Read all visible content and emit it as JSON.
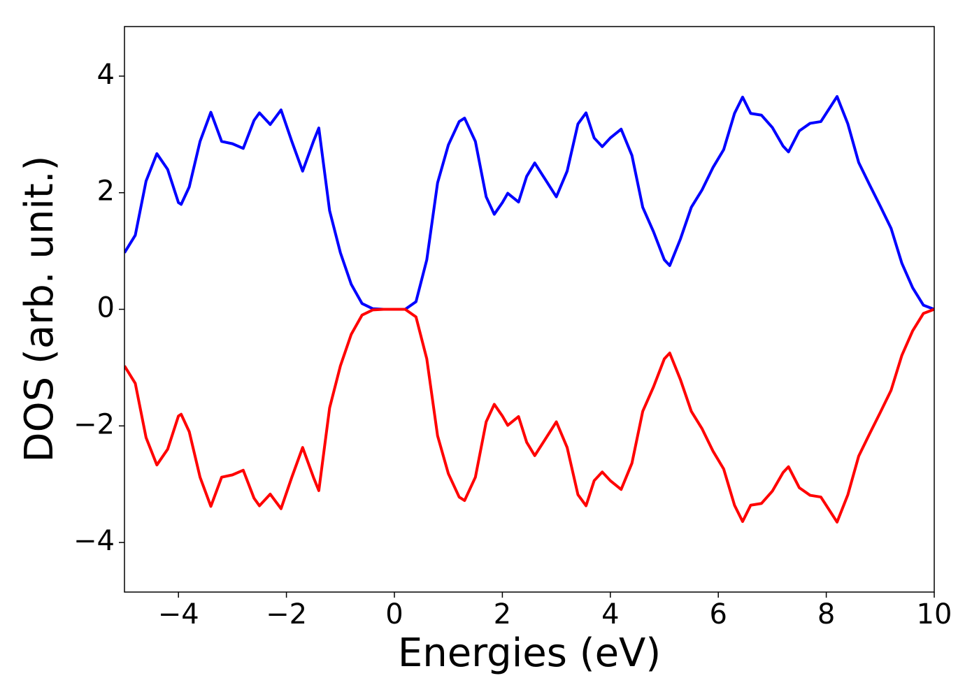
{
  "chart_data": {
    "type": "line",
    "xlabel": "Energies (eV)",
    "ylabel": "DOS (arb. unit.)",
    "x": [
      -5,
      -4.8,
      -4.6,
      -4.4,
      -4.2,
      -4.0,
      -3.95,
      -3.8,
      -3.6,
      -3.4,
      -3.2,
      -3.0,
      -2.8,
      -2.6,
      -2.5,
      -2.3,
      -2.1,
      -1.9,
      -1.7,
      -1.5,
      -1.4,
      -1.2,
      -1.0,
      -0.8,
      -0.6,
      -0.4,
      -0.2,
      0,
      0.2,
      0.4,
      0.6,
      0.8,
      1.0,
      1.2,
      1.3,
      1.5,
      1.7,
      1.85,
      2.0,
      2.1,
      2.3,
      2.45,
      2.6,
      2.8,
      3.0,
      3.2,
      3.4,
      3.55,
      3.7,
      3.85,
      4.0,
      4.2,
      4.4,
      4.6,
      4.8,
      5.0,
      5.1,
      5.3,
      5.5,
      5.7,
      5.9,
      6.1,
      6.3,
      6.45,
      6.6,
      6.8,
      7.0,
      7.2,
      7.3,
      7.5,
      7.7,
      7.9,
      8.2,
      8.4,
      8.6,
      8.8,
      9.0,
      9.2,
      9.4,
      9.6,
      9.8,
      10
    ],
    "series": [
      {
        "color": "#0000ff",
        "values": [
          0.97,
          1.27,
          2.2,
          2.67,
          2.4,
          1.83,
          1.8,
          2.1,
          2.88,
          3.38,
          2.88,
          2.84,
          2.76,
          3.24,
          3.37,
          3.17,
          3.42,
          2.88,
          2.37,
          2.88,
          3.11,
          1.69,
          0.97,
          0.43,
          0.1,
          0.01,
          0,
          0,
          0,
          0.13,
          0.85,
          2.17,
          2.82,
          3.22,
          3.28,
          2.88,
          1.93,
          1.63,
          1.83,
          1.99,
          1.84,
          2.28,
          2.51,
          2.22,
          1.93,
          2.37,
          3.18,
          3.37,
          2.94,
          2.79,
          2.94,
          3.09,
          2.64,
          1.75,
          1.33,
          0.85,
          0.75,
          1.21,
          1.75,
          2.05,
          2.43,
          2.74,
          3.36,
          3.64,
          3.36,
          3.33,
          3.12,
          2.8,
          2.7,
          3.06,
          3.19,
          3.22,
          3.65,
          3.18,
          2.52,
          2.14,
          1.77,
          1.39,
          0.79,
          0.37,
          0.07,
          0
        ]
      },
      {
        "color": "#ff0000",
        "values": [
          -0.97,
          -1.27,
          -2.2,
          -2.67,
          -2.4,
          -1.83,
          -1.8,
          -2.1,
          -2.88,
          -3.38,
          -2.88,
          -2.84,
          -2.76,
          -3.24,
          -3.37,
          -3.17,
          -3.42,
          -2.88,
          -2.37,
          -2.88,
          -3.11,
          -1.69,
          -0.97,
          -0.43,
          -0.1,
          -0.01,
          0,
          0,
          0,
          -0.13,
          -0.85,
          -2.17,
          -2.82,
          -3.22,
          -3.28,
          -2.88,
          -1.93,
          -1.63,
          -1.83,
          -1.99,
          -1.84,
          -2.28,
          -2.51,
          -2.22,
          -1.93,
          -2.37,
          -3.18,
          -3.37,
          -2.94,
          -2.79,
          -2.94,
          -3.09,
          -2.64,
          -1.75,
          -1.33,
          -0.85,
          -0.75,
          -1.21,
          -1.75,
          -2.05,
          -2.43,
          -2.74,
          -3.36,
          -3.64,
          -3.36,
          -3.33,
          -3.12,
          -2.8,
          -2.7,
          -3.06,
          -3.19,
          -3.22,
          -3.65,
          -3.18,
          -2.52,
          -2.14,
          -1.77,
          -1.39,
          -0.79,
          -0.37,
          -0.07,
          0
        ]
      }
    ],
    "xlim": [
      -5,
      10
    ],
    "xticks": [
      {
        "value": -4,
        "label": "−4"
      },
      {
        "value": -2,
        "label": "−2"
      },
      0,
      2,
      4,
      6,
      8,
      10
    ],
    "ylim": [
      -4.85,
      4.85
    ],
    "yticks": [
      {
        "value": -4,
        "label": "−4"
      },
      {
        "value": -2,
        "label": "−2"
      },
      0,
      2,
      4
    ],
    "grid": false
  }
}
